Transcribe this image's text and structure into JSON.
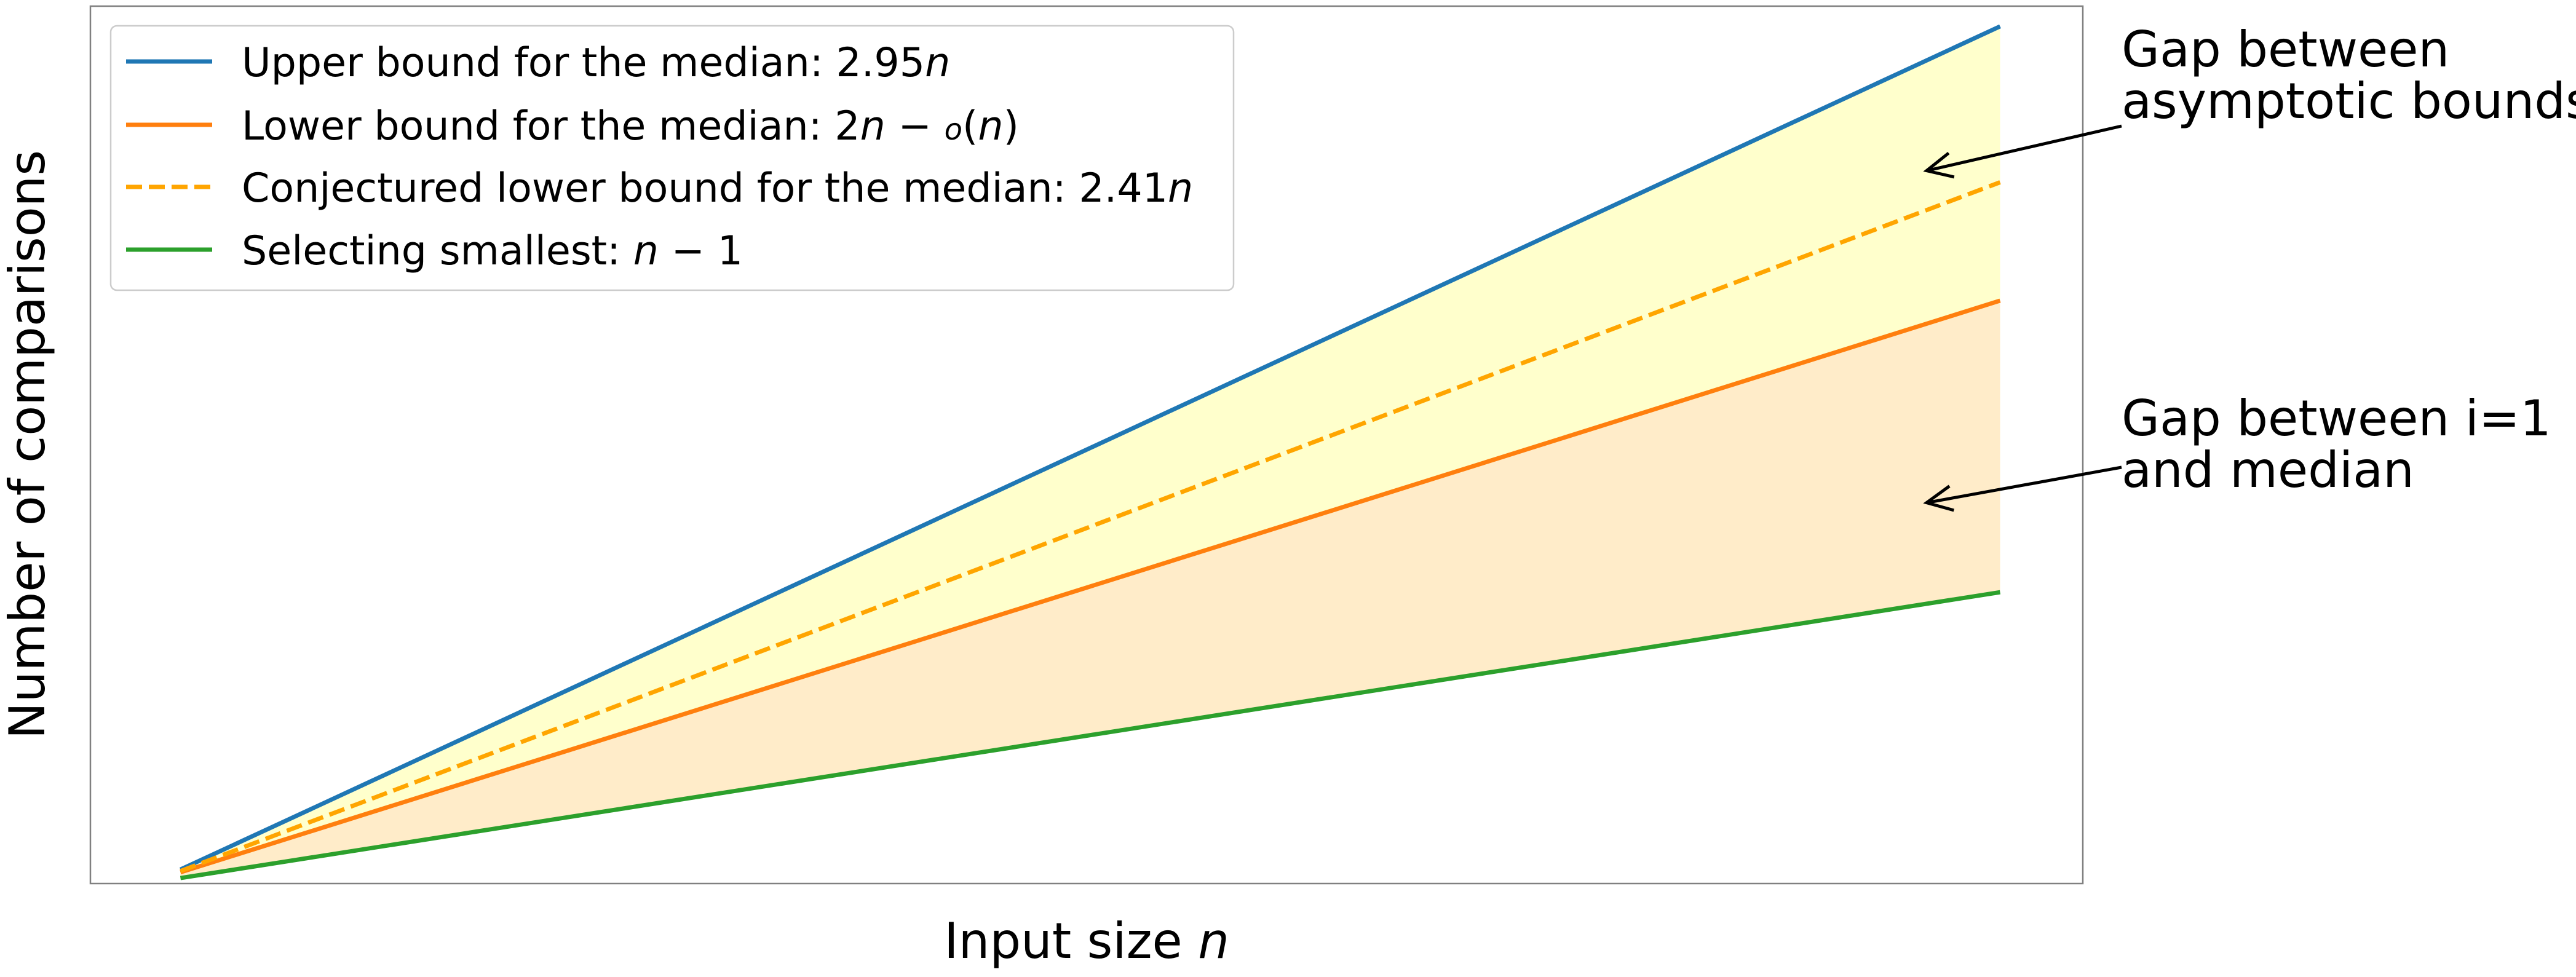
{
  "chart_data": {
    "type": "line",
    "title": "",
    "xlabel": "Input size",
    "xlabel_var": "n",
    "ylabel": "Number of comparisons",
    "x_ticks": "none",
    "y_ticks": "none",
    "grid": false,
    "legend_placement": "upper-left",
    "x": [
      1,
      100
    ],
    "xlim": [
      -3.9,
      104.5
    ],
    "ylim": [
      -1.9,
      302
    ],
    "series": [
      {
        "key": "upper",
        "legend": [
          {
            "t": "Upper bound for the median: 2.95",
            "i": false
          },
          {
            "t": "n",
            "i": true
          }
        ],
        "values": [
          2.95,
          295
        ],
        "color": "#1f77b4",
        "dash": false
      },
      {
        "key": "lower",
        "legend": [
          {
            "t": "Lower bound for the median: 2",
            "i": false
          },
          {
            "t": "n",
            "i": true
          },
          {
            "t": " − ",
            "i": false
          },
          {
            "t": "o",
            "i": true,
            "small": true
          },
          {
            "t": "(",
            "i": false
          },
          {
            "t": "n",
            "i": true
          },
          {
            "t": ")",
            "i": false
          }
        ],
        "values": [
          2,
          200
        ],
        "color": "#ff7f0e",
        "dash": false
      },
      {
        "key": "conjectured",
        "legend": [
          {
            "t": "Conjectured lower bound for the median: 2.41",
            "i": false
          },
          {
            "t": "n",
            "i": true
          }
        ],
        "values": [
          2.41,
          241
        ],
        "color": "#ffa500",
        "dash": true
      },
      {
        "key": "smallest",
        "legend": [
          {
            "t": "Selecting smallest: ",
            "i": false
          },
          {
            "t": "n",
            "i": true
          },
          {
            "t": " − 1",
            "i": false
          }
        ],
        "values": [
          0,
          99
        ],
        "color": "#2ca02c",
        "dash": false
      }
    ],
    "fills": [
      {
        "between": [
          "upper",
          "lower"
        ],
        "color": "#ffffcc",
        "opacity": 1
      },
      {
        "between": [
          "lower",
          "smallest"
        ],
        "color": "#ffecc9",
        "opacity": 1
      }
    ],
    "annotations": [
      {
        "lines": [
          "Gap between",
          "asymptotic bounds"
        ],
        "points_to": {
          "x": 96,
          "y": 245
        }
      },
      {
        "lines": [
          "Gap between i=1",
          "and median"
        ],
        "points_to": {
          "x": 96,
          "y": 130
        }
      }
    ]
  }
}
